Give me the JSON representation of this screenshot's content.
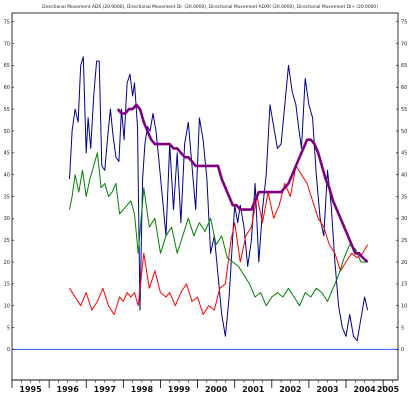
{
  "chart_data": {
    "type": "line",
    "title": "Directional Movement ADX (20.0000), Directional Movement Di- (20.0000), Directional Movement ADXR (20.0000), Directional Movement DI+ (20.0000)",
    "xlabel": "",
    "ylabel": "",
    "xlim": [
      1995.0,
      2005.4
    ],
    "ylim": [
      -7,
      77
    ],
    "x_ticks": [
      "1995",
      "1996",
      "1997",
      "1998",
      "1999",
      "2000",
      "2001",
      "2002",
      "2003",
      "2004",
      "2005"
    ],
    "y_ticks": [
      0,
      5,
      10,
      15,
      20,
      25,
      30,
      35,
      40,
      45,
      50,
      55,
      60,
      65,
      70,
      75
    ],
    "grid": false,
    "legend": "none",
    "zero_line_color": "#3355ff",
    "series": [
      {
        "color": "#00008b",
        "x": [
          1996.55,
          1996.62,
          1996.7,
          1996.78,
          1996.85,
          1996.92,
          1997.0,
          1997.05,
          1997.12,
          1997.2,
          1997.28,
          1997.35,
          1997.42,
          1997.5,
          1997.58,
          1997.65,
          1997.72,
          1997.8,
          1997.88,
          1997.95,
          1998.02,
          1998.1,
          1998.18,
          1998.25,
          1998.3,
          1998.38,
          1998.45,
          1998.52,
          1998.58,
          1998.65,
          1998.72,
          1998.8,
          1998.88,
          1998.95,
          1999.05,
          1999.15,
          1999.25,
          1999.35,
          1999.45,
          1999.55,
          1999.65,
          1999.75,
          1999.85,
          1999.95,
          2000.05,
          2000.15,
          2000.25,
          2000.35,
          2000.45,
          2000.55,
          2000.65,
          2000.75,
          2000.85,
          2000.95,
          2001.0,
          2001.08,
          2001.15,
          2001.25,
          2001.35,
          2001.45,
          2001.55,
          2001.65,
          2001.75,
          2001.85,
          2001.95,
          2002.05,
          2002.15,
          2002.25,
          2002.35,
          2002.45,
          2002.55,
          2002.65,
          2002.72,
          2002.8,
          2002.9,
          2003.0,
          2003.1,
          2003.2,
          2003.3,
          2003.4,
          2003.5,
          2003.6,
          2003.7,
          2003.8,
          2003.9,
          2004.0,
          2004.1,
          2004.2,
          2004.3,
          2004.4,
          2004.5,
          2004.58
        ],
        "y": [
          39,
          50,
          55,
          52,
          65,
          67,
          45,
          53,
          46,
          58,
          66,
          66,
          42,
          41,
          49,
          55,
          49,
          44,
          43,
          55,
          48,
          61,
          63,
          58,
          61,
          51,
          9,
          39,
          47,
          51,
          50,
          54,
          50,
          44,
          35,
          26,
          47,
          32,
          45,
          29,
          47,
          52,
          42,
          32,
          53,
          48,
          39,
          22,
          26,
          17,
          8,
          3,
          12,
          26,
          33,
          29,
          33,
          28,
          19,
          25,
          38,
          20,
          32,
          40,
          56,
          51,
          46,
          47,
          56,
          65,
          59,
          56,
          51,
          46,
          62,
          56,
          53,
          40,
          30,
          26,
          41,
          33,
          20,
          10,
          5,
          3,
          8,
          3,
          2,
          7,
          12,
          9
        ]
      },
      {
        "color": "#ff0000",
        "x": [
          1996.55,
          1996.7,
          1996.85,
          1997.0,
          1997.15,
          1997.3,
          1997.45,
          1997.6,
          1997.75,
          1997.9,
          1998.0,
          1998.1,
          1998.2,
          1998.3,
          1998.4,
          1998.55,
          1998.7,
          1998.85,
          1999.0,
          1999.15,
          1999.25,
          1999.4,
          1999.55,
          1999.7,
          1999.85,
          2000.0,
          2000.15,
          2000.3,
          2000.45,
          2000.6,
          2000.75,
          2000.9,
          2001.0,
          2001.15,
          2001.3,
          2001.45,
          2001.6,
          2001.75,
          2001.9,
          2002.05,
          2002.2,
          2002.35,
          2002.5,
          2002.65,
          2002.8,
          2002.95,
          2003.1,
          2003.25,
          2003.4,
          2003.55,
          2003.7,
          2003.85,
          2004.0,
          2004.15,
          2004.3,
          2004.45,
          2004.58
        ],
        "y": [
          14,
          12,
          10,
          13,
          9,
          11,
          14,
          10,
          8,
          12,
          11,
          13,
          12,
          13,
          10,
          22,
          14,
          18,
          13,
          12,
          13,
          10,
          13,
          15,
          11,
          12,
          8,
          10,
          9,
          14,
          15,
          25,
          29,
          20,
          26,
          28,
          35,
          29,
          36,
          30,
          33,
          38,
          35,
          42,
          40,
          38,
          34,
          30,
          28,
          24,
          22,
          18,
          20,
          22,
          21,
          22,
          24
        ]
      },
      {
        "color": "#008000",
        "x": [
          1996.55,
          1996.62,
          1996.7,
          1996.8,
          1996.9,
          1997.0,
          1997.1,
          1997.2,
          1997.3,
          1997.4,
          1997.5,
          1997.6,
          1997.7,
          1997.8,
          1997.9,
          1998.0,
          1998.1,
          1998.2,
          1998.3,
          1998.4,
          1998.55,
          1998.7,
          1998.85,
          1999.0,
          1999.15,
          1999.3,
          1999.45,
          1999.6,
          1999.75,
          1999.9,
          2000.05,
          2000.2,
          2000.35,
          2000.5,
          2000.65,
          2000.8,
          2000.95,
          2001.1,
          2001.25,
          2001.4,
          2001.55,
          2001.7,
          2001.85,
          2002.0,
          2002.15,
          2002.3,
          2002.45,
          2002.6,
          2002.75,
          2002.9,
          2003.05,
          2003.2,
          2003.35,
          2003.5,
          2003.65,
          2003.8,
          2003.95,
          2004.1,
          2004.25,
          2004.4,
          2004.58
        ],
        "y": [
          32,
          35,
          40,
          36,
          41,
          35,
          39,
          42,
          45,
          37,
          38,
          35,
          36,
          38,
          31,
          32,
          33,
          34,
          31,
          22,
          37,
          28,
          30,
          22,
          26,
          28,
          22,
          26,
          30,
          26,
          29,
          27,
          30,
          24,
          26,
          21,
          20,
          19,
          17,
          15,
          12,
          13,
          10,
          12,
          13,
          12,
          14,
          12,
          10,
          13,
          12,
          14,
          13,
          11,
          14,
          17,
          21,
          24,
          23,
          20,
          20
        ]
      },
      {
        "color": "#800080",
        "x": [
          1997.85,
          1997.95,
          1998.05,
          1998.15,
          1998.25,
          1998.35,
          1998.45,
          1998.55,
          1998.65,
          1998.75,
          1998.85,
          1998.95,
          1999.05,
          1999.15,
          1999.25,
          1999.35,
          1999.45,
          1999.55,
          1999.65,
          1999.75,
          1999.85,
          1999.95,
          2000.05,
          2000.15,
          2000.25,
          2000.35,
          2000.45,
          2000.55,
          2000.65,
          2000.75,
          2000.85,
          2000.95,
          2001.05,
          2001.15,
          2001.25,
          2001.35,
          2001.45,
          2001.55,
          2001.65,
          2001.75,
          2001.85,
          2001.95,
          2002.05,
          2002.15,
          2002.25,
          2002.35,
          2002.45,
          2002.55,
          2002.65,
          2002.75,
          2002.85,
          2002.95,
          2003.05,
          2003.15,
          2003.25,
          2003.35,
          2003.45,
          2003.55,
          2003.65,
          2003.75,
          2003.85,
          2003.95,
          2004.05,
          2004.15,
          2004.25,
          2004.35,
          2004.45,
          2004.58
        ],
        "y": [
          55,
          54,
          54,
          55,
          55,
          56,
          55,
          52,
          50,
          48,
          47,
          47,
          47,
          47,
          47,
          46,
          46,
          45,
          44,
          44,
          43,
          42,
          42,
          42,
          42,
          42,
          42,
          42,
          39,
          37,
          35,
          33,
          33,
          32,
          32,
          32,
          32,
          34,
          36,
          36,
          36,
          36,
          36,
          36,
          36,
          37,
          38,
          40,
          42,
          44,
          46,
          48,
          48,
          47,
          45,
          42,
          39,
          37,
          34,
          32,
          30,
          28,
          26,
          24,
          22,
          22,
          21,
          20
        ]
      }
    ]
  }
}
